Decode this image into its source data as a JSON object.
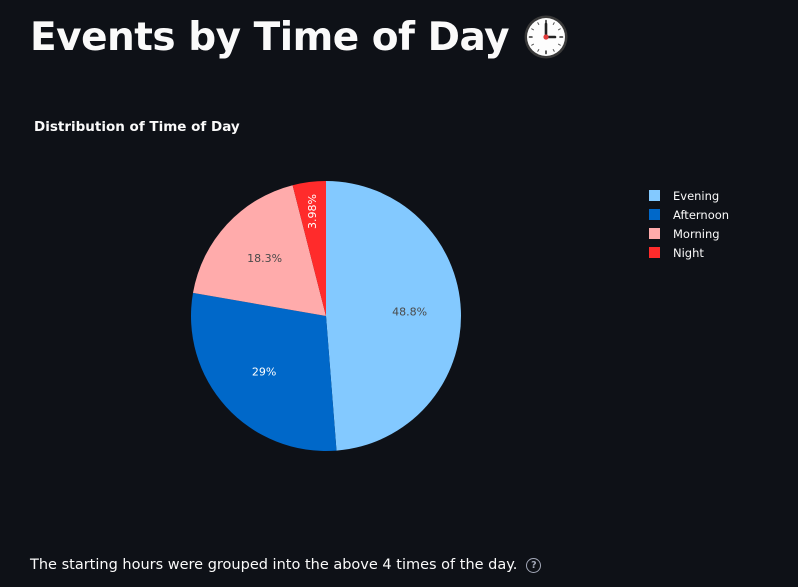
{
  "header": {
    "title": "Events by Time of Day",
    "title_icon": "clock-icon"
  },
  "chart_data": {
    "type": "pie",
    "title": "Distribution of Time of Day",
    "categories": [
      "Evening",
      "Afternoon",
      "Morning",
      "Night"
    ],
    "values": [
      48.8,
      29,
      18.3,
      3.98
    ],
    "labels": [
      "48.8%",
      "29%",
      "18.3%",
      "3.98%"
    ],
    "colors": [
      "#83c9ff",
      "#0068c9",
      "#ffabab",
      "#ff2b2b"
    ],
    "label_colors": [
      "#4a4a4a",
      "#ffffff",
      "#4a4a4a",
      "#ffffff"
    ],
    "direction": "clockwise",
    "start_angle": "top",
    "legend_position": "right"
  },
  "caption": {
    "text": "The starting hours were grouped into the above 4 times of the day.",
    "help_icon": "question-circle-icon"
  }
}
